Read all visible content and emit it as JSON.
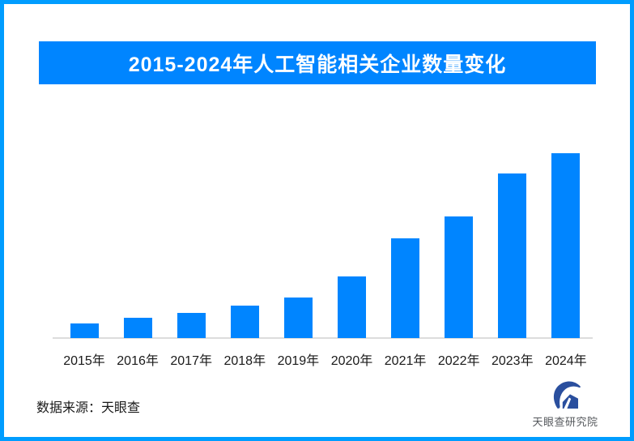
{
  "page": {
    "background": "#ffffff",
    "border_color": "#009dff"
  },
  "header": {
    "title": "2015-2024年人工智能相关企业数量变化",
    "banner_color": "#0085ff",
    "title_color": "#ffffff"
  },
  "chart_data": {
    "type": "bar",
    "title": "2015-2024年人工智能相关企业数量变化",
    "categories": [
      "2015年",
      "2016年",
      "2017年",
      "2018年",
      "2019年",
      "2020年",
      "2021年",
      "2022年",
      "2023年",
      "2024年"
    ],
    "values": [
      8,
      11,
      13.5,
      17.5,
      22,
      33.5,
      54,
      66,
      89,
      100
    ],
    "value_unit": "relative index (no numeric axis or data labels shown in image; 2024 bar = 100)",
    "xlabel": "",
    "ylabel": "",
    "ylim": [
      0,
      100
    ],
    "grid": false,
    "legend": "none",
    "bar_color": "#0085ff",
    "axis_line_color": "#dcdcdc",
    "tick_label_color": "#1a1a1a"
  },
  "footer": {
    "source_label": "数据来源：天眼查",
    "logo_text": "天眼查研究院",
    "logo_icon": "tianyancha-eye-icon",
    "logo_color": "#2a4f9e"
  }
}
